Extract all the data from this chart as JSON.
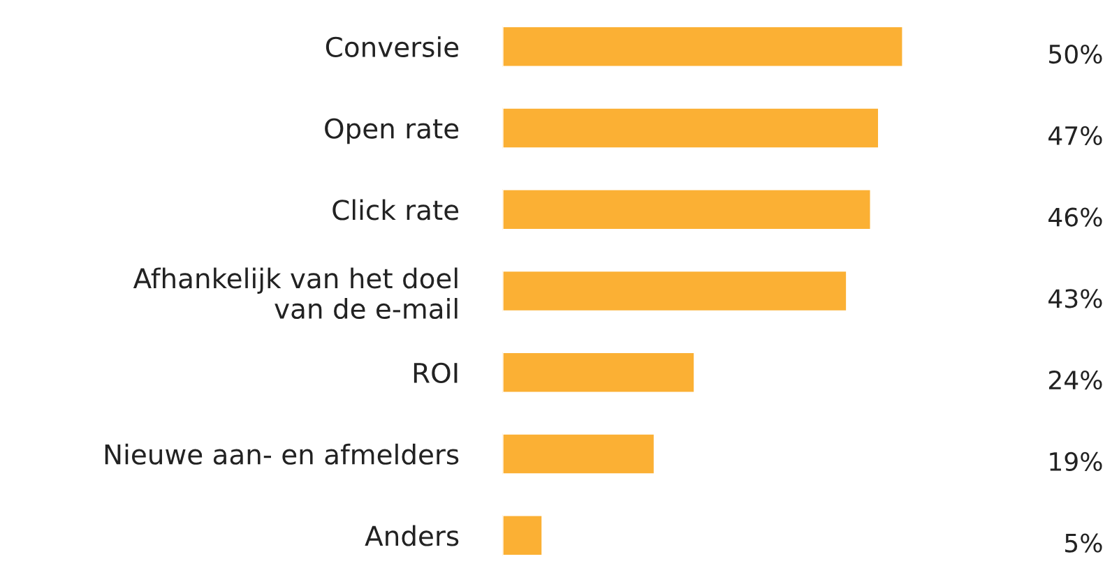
{
  "chart_data": {
    "type": "bar",
    "orientation": "horizontal",
    "categories": [
      "Conversie",
      "Open rate",
      "Click rate",
      "Afhankelijk van het doel\nvan de e-mail",
      "ROI",
      "Nieuwe aan- en afmelders",
      "Anders"
    ],
    "values": [
      50,
      47,
      46,
      43,
      24,
      19,
      5
    ],
    "value_labels": [
      "50%",
      "47%",
      "46%",
      "43%",
      "24%",
      "19%",
      "5%"
    ],
    "color": "#fbb034",
    "tick_labels": "y",
    "grid": false,
    "legend": false
  }
}
